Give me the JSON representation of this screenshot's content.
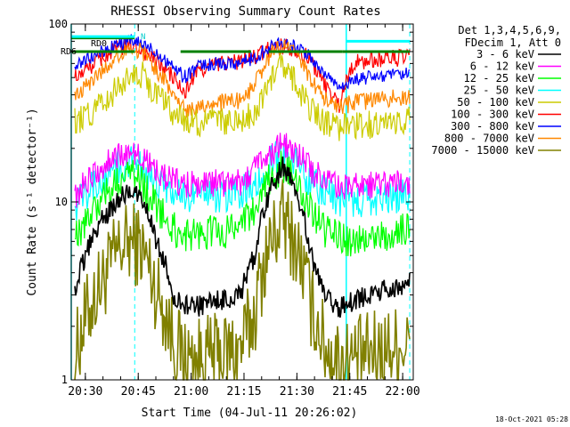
{
  "chart_data": {
    "type": "line",
    "title": "RHESSI Observing Summary Count Rates",
    "xlabel": "Start Time (04-Jul-11 20:26:02)",
    "ylabel": "Count Rate (s⁻¹ detector⁻¹)",
    "yscale": "log",
    "ylim": [
      1,
      100
    ],
    "xlim": [
      "20:26",
      "22:03"
    ],
    "x_ticks": [
      "20:30",
      "20:45",
      "21:00",
      "21:15",
      "21:30",
      "21:45",
      "22:00"
    ],
    "y_ticks": [
      "1",
      "10",
      "100"
    ],
    "legend_header": [
      "Det 1,3,4,5,6,9,",
      "FDecim 1, Att 0"
    ],
    "legend_position": "right",
    "timestamp": "18-Oct-2021 05:28",
    "annotations": {
      "rd0": "RD0",
      "rd6": "RD6",
      "n": "N"
    },
    "markers": {
      "cyan_solid_lines": [
        "20:26",
        "21:44"
      ],
      "cyan_dashed_lines": [
        "20:44",
        "22:02"
      ],
      "rd6_segments": [
        [
          "20:26",
          "20:44"
        ],
        [
          "20:57",
          "21:17"
        ],
        [
          "21:22",
          "21:43"
        ],
        [
          "21:43",
          "22:02"
        ]
      ]
    },
    "x": [
      "20:27",
      "20:30",
      "20:35",
      "20:40",
      "20:43",
      "20:46",
      "20:50",
      "20:55",
      "20:58",
      "21:02",
      "21:08",
      "21:14",
      "21:18",
      "21:22",
      "21:26",
      "21:30",
      "21:34",
      "21:38",
      "21:42",
      "21:46",
      "21:50",
      "21:55",
      "22:02"
    ],
    "series": [
      {
        "name": "3 - 6 keV",
        "color": "#000000",
        "values": [
          3.2,
          5,
          8,
          10.5,
          11.5,
          10.5,
          6,
          3,
          2.6,
          2.6,
          2.8,
          3,
          5,
          11,
          16,
          11,
          5,
          3,
          2.5,
          2.8,
          3,
          3.2,
          3.5
        ]
      },
      {
        "name": "6 - 12 keV",
        "color": "#ff00ff",
        "values": [
          10.5,
          13,
          16,
          18.5,
          19,
          18,
          15,
          13,
          12.5,
          12.5,
          12.8,
          13,
          15,
          18.5,
          21,
          18.5,
          15,
          13,
          12.3,
          12.3,
          12.5,
          12.6,
          13
        ]
      },
      {
        "name": "12 - 25 keV",
        "color": "#00ff00",
        "values": [
          6,
          7.5,
          10.5,
          13.5,
          14,
          13,
          9.5,
          7,
          6.5,
          6.5,
          6.8,
          7,
          9,
          13,
          16,
          13,
          9,
          6.8,
          6.2,
          6.2,
          6.4,
          6.5,
          7
        ]
      },
      {
        "name": "25 - 50 keV",
        "color": "#00ffff",
        "values": [
          9.5,
          11,
          13.5,
          16,
          16.5,
          15.5,
          13,
          11,
          10.5,
          10.5,
          10.8,
          11,
          13,
          16,
          19,
          16,
          13,
          11,
          10,
          10,
          10.3,
          10.5,
          11
        ]
      },
      {
        "name": "50 - 100 keV",
        "color": "#cccc00",
        "values": [
          28,
          30,
          35,
          45,
          55,
          52,
          40,
          32,
          29,
          28,
          28,
          28,
          32,
          45,
          60,
          45,
          33,
          28,
          26,
          27,
          27,
          28,
          29
        ]
      },
      {
        "name": "100 - 300 keV",
        "color": "#ff0000",
        "values": [
          50,
          55,
          65,
          74,
          76,
          72,
          62,
          50,
          40,
          55,
          60,
          62,
          65,
          72,
          76,
          72,
          62,
          45,
          35,
          60,
          62,
          64,
          65
        ]
      },
      {
        "name": "300 - 800 keV",
        "color": "#0000ff",
        "values": [
          58,
          62,
          70,
          78,
          80,
          77,
          70,
          58,
          50,
          58,
          60,
          61,
          64,
          74,
          80,
          74,
          64,
          52,
          45,
          48,
          50,
          51,
          52
        ]
      },
      {
        "name": "800 - 7000 keV",
        "color": "#ff8800",
        "values": [
          38,
          44,
          55,
          68,
          74,
          70,
          56,
          40,
          33,
          35,
          36,
          37,
          45,
          65,
          78,
          66,
          48,
          38,
          34,
          36,
          37,
          38,
          39
        ]
      },
      {
        "name": "7000 - 15000 keV",
        "color": "#808000",
        "values": [
          1.3,
          2.2,
          3.6,
          5.5,
          6,
          5.5,
          3.2,
          1.7,
          1.3,
          1.3,
          1.4,
          1.5,
          2.3,
          5.5,
          8,
          5.5,
          2.6,
          1.5,
          1.3,
          1.3,
          1.4,
          1.5,
          1.6
        ]
      }
    ]
  }
}
